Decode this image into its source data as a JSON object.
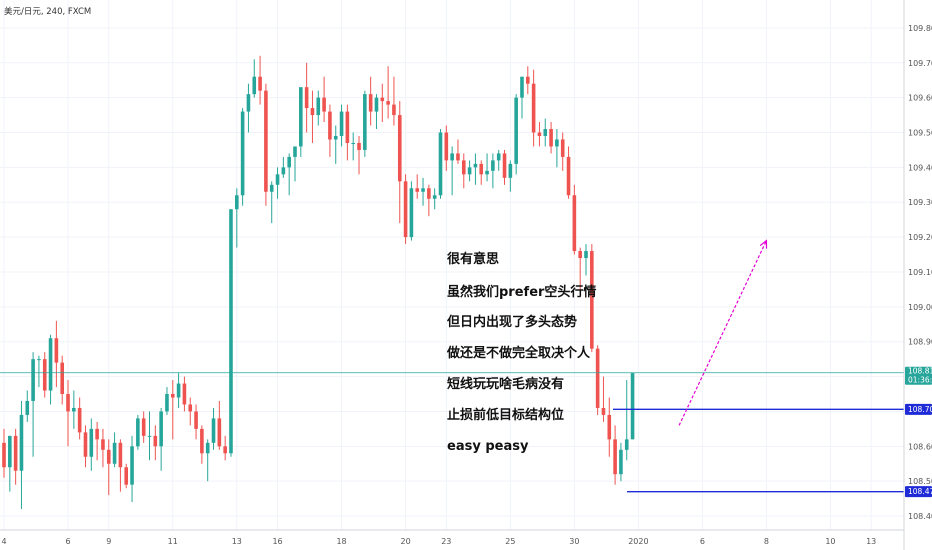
{
  "header": {
    "symbol_line": "美元/日元, 240, FXCM"
  },
  "colors": {
    "up": "#26a69a",
    "down": "#ef5350",
    "current_line": "#26a69a",
    "level_line": "#1e2bd6",
    "arrow": "#e500d6"
  },
  "annotations": [
    "很有意思",
    "虽然我们prefer空头行情",
    "但日内出现了多头态势",
    "做还是不做完全取决个人",
    "短线玩玩啥毛病没有",
    "止损前低目标结构位",
    "easy peasy"
  ],
  "price_labels": {
    "current": "108.811",
    "countdown": "01:36:14",
    "upper_level": "108.706",
    "lower_level": "108.470"
  },
  "chart_data": {
    "type": "candlestick",
    "title": "美元/日元, 240, FXCM",
    "ylim": [
      108.36,
      109.88
    ],
    "y_ticks": [
      108.4,
      108.5,
      108.6,
      108.7,
      108.8,
      108.9,
      109.0,
      109.1,
      109.2,
      109.3,
      109.4,
      109.5,
      109.6,
      109.7,
      109.8
    ],
    "y_tick_labels": [
      "108.400",
      "108.500",
      "108.600",
      "108.700",
      "108.800",
      "108.900",
      "109.000",
      "109.100",
      "109.200",
      "109.300",
      "109.400",
      "109.500",
      "109.600",
      "109.700",
      "109.800"
    ],
    "x_tick_labels": [
      "4",
      "6",
      "9",
      "11",
      "13",
      "16",
      "18",
      "20",
      "23",
      "25",
      "30",
      "2020",
      "6",
      "8",
      "10",
      "13"
    ],
    "x_tick_bar_index": [
      0,
      11,
      18,
      29,
      40,
      47,
      58,
      69,
      76,
      87,
      98,
      109,
      120,
      131,
      142,
      149
    ],
    "current_price": 108.811,
    "levels": [
      108.706,
      108.47
    ],
    "arrow": {
      "from": {
        "bar": 116,
        "price": 108.66
      },
      "to": {
        "bar": 131,
        "price": 109.19
      }
    },
    "ohlc": [
      [
        108.61,
        108.65,
        108.51,
        108.54
      ],
      [
        108.54,
        108.63,
        108.47,
        108.63
      ],
      [
        108.63,
        108.65,
        108.49,
        108.53
      ],
      [
        108.53,
        108.73,
        108.42,
        108.69
      ],
      [
        108.69,
        108.76,
        108.67,
        108.73
      ],
      [
        108.73,
        108.87,
        108.57,
        108.85
      ],
      [
        108.85,
        108.86,
        108.77,
        108.85
      ],
      [
        108.85,
        108.87,
        108.74,
        108.76
      ],
      [
        108.76,
        108.92,
        108.72,
        108.91
      ],
      [
        108.91,
        108.96,
        108.77,
        108.84
      ],
      [
        108.84,
        108.86,
        108.72,
        108.75
      ],
      [
        108.75,
        108.79,
        108.6,
        108.7
      ],
      [
        108.7,
        108.76,
        108.65,
        108.71
      ],
      [
        108.71,
        108.74,
        108.62,
        108.64
      ],
      [
        108.64,
        108.66,
        108.54,
        108.57
      ],
      [
        108.57,
        108.68,
        108.53,
        108.65
      ],
      [
        108.65,
        108.67,
        108.56,
        108.62
      ],
      [
        108.62,
        108.65,
        108.54,
        108.59
      ],
      [
        108.59,
        108.62,
        108.46,
        108.55
      ],
      [
        108.55,
        108.64,
        108.54,
        108.61
      ],
      [
        108.61,
        108.62,
        108.47,
        108.54
      ],
      [
        108.54,
        108.55,
        108.48,
        108.49
      ],
      [
        108.49,
        108.63,
        108.44,
        108.6
      ],
      [
        108.6,
        108.69,
        108.59,
        108.68
      ],
      [
        108.68,
        108.7,
        108.61,
        108.63
      ],
      [
        108.63,
        108.7,
        108.56,
        108.63
      ],
      [
        108.63,
        108.66,
        108.56,
        108.6
      ],
      [
        108.6,
        108.71,
        108.53,
        108.7
      ],
      [
        108.7,
        108.77,
        108.69,
        108.75
      ],
      [
        108.75,
        108.79,
        108.62,
        108.74
      ],
      [
        108.74,
        108.81,
        108.71,
        108.78
      ],
      [
        108.78,
        108.8,
        108.7,
        108.72
      ],
      [
        108.72,
        108.74,
        108.66,
        108.7
      ],
      [
        108.7,
        108.72,
        108.62,
        108.65
      ],
      [
        108.65,
        108.66,
        108.55,
        108.58
      ],
      [
        108.58,
        108.62,
        108.5,
        108.61
      ],
      [
        108.61,
        108.71,
        108.59,
        108.68
      ],
      [
        108.68,
        108.73,
        108.59,
        108.6
      ],
      [
        108.6,
        108.63,
        108.56,
        108.58
      ],
      [
        108.58,
        109.28,
        108.57,
        109.28
      ],
      [
        109.28,
        109.34,
        109.17,
        109.32
      ],
      [
        109.32,
        109.57,
        109.29,
        109.56
      ],
      [
        109.56,
        109.64,
        109.5,
        109.61
      ],
      [
        109.61,
        109.71,
        109.6,
        109.66
      ],
      [
        109.66,
        109.72,
        109.58,
        109.62
      ],
      [
        109.62,
        109.64,
        109.29,
        109.33
      ],
      [
        109.33,
        109.36,
        109.24,
        109.35
      ],
      [
        109.35,
        109.4,
        109.31,
        109.38
      ],
      [
        109.38,
        109.43,
        109.37,
        109.4
      ],
      [
        109.4,
        109.44,
        109.32,
        109.43
      ],
      [
        109.43,
        109.45,
        109.36,
        109.46
      ],
      [
        109.46,
        109.62,
        109.43,
        109.63
      ],
      [
        109.63,
        109.7,
        109.5,
        109.57
      ],
      [
        109.57,
        109.62,
        109.47,
        109.55
      ],
      [
        109.55,
        109.62,
        109.52,
        109.6
      ],
      [
        109.6,
        109.66,
        109.53,
        109.56
      ],
      [
        109.56,
        109.58,
        109.43,
        109.48
      ],
      [
        109.48,
        109.52,
        109.41,
        109.49
      ],
      [
        109.49,
        109.58,
        109.46,
        109.56
      ],
      [
        109.56,
        109.58,
        109.42,
        109.47
      ],
      [
        109.47,
        109.5,
        109.42,
        109.47
      ],
      [
        109.47,
        109.49,
        109.38,
        109.45
      ],
      [
        109.45,
        109.62,
        109.43,
        109.61
      ],
      [
        109.61,
        109.66,
        109.52,
        109.56
      ],
      [
        109.56,
        109.61,
        109.51,
        109.6
      ],
      [
        109.6,
        109.64,
        109.53,
        109.59
      ],
      [
        109.59,
        109.69,
        109.54,
        109.58
      ],
      [
        109.58,
        109.66,
        109.52,
        109.55
      ],
      [
        109.55,
        109.59,
        109.24,
        109.36
      ],
      [
        109.36,
        109.38,
        109.18,
        109.2
      ],
      [
        109.2,
        109.36,
        109.19,
        109.34
      ],
      [
        109.34,
        109.38,
        109.31,
        109.33
      ],
      [
        109.33,
        109.37,
        109.29,
        109.34
      ],
      [
        109.34,
        109.35,
        109.26,
        109.31
      ],
      [
        109.31,
        109.34,
        109.28,
        109.32
      ],
      [
        109.32,
        109.51,
        109.31,
        109.5
      ],
      [
        109.5,
        109.52,
        109.39,
        109.42
      ],
      [
        109.42,
        109.46,
        109.32,
        109.44
      ],
      [
        109.44,
        109.48,
        109.41,
        109.42
      ],
      [
        109.42,
        109.44,
        109.34,
        109.38
      ],
      [
        109.38,
        109.42,
        109.36,
        109.4
      ],
      [
        109.4,
        109.44,
        109.35,
        109.41
      ],
      [
        109.41,
        109.42,
        109.35,
        109.38
      ],
      [
        109.38,
        109.44,
        109.36,
        109.39
      ],
      [
        109.39,
        109.44,
        109.34,
        109.42
      ],
      [
        109.42,
        109.45,
        109.39,
        109.44
      ],
      [
        109.44,
        109.45,
        109.35,
        109.37
      ],
      [
        109.37,
        109.42,
        109.33,
        109.41
      ],
      [
        109.41,
        109.61,
        109.38,
        109.6
      ],
      [
        109.6,
        109.66,
        109.54,
        109.66
      ],
      [
        109.66,
        109.69,
        109.61,
        109.64
      ],
      [
        109.64,
        109.68,
        109.46,
        109.5
      ],
      [
        109.5,
        109.53,
        109.46,
        109.49
      ],
      [
        109.49,
        109.54,
        109.46,
        109.51
      ],
      [
        109.51,
        109.53,
        109.44,
        109.46
      ],
      [
        109.46,
        109.51,
        109.4,
        109.48
      ],
      [
        109.48,
        109.5,
        109.39,
        109.43
      ],
      [
        109.43,
        109.46,
        109.31,
        109.32
      ],
      [
        109.32,
        109.35,
        109.15,
        109.16
      ],
      [
        109.16,
        109.17,
        109.04,
        109.14
      ],
      [
        109.14,
        109.18,
        109.09,
        109.16
      ],
      [
        109.16,
        109.18,
        108.87,
        108.88
      ],
      [
        108.88,
        108.89,
        108.69,
        108.71
      ],
      [
        108.71,
        108.8,
        108.67,
        108.69
      ],
      [
        108.69,
        108.74,
        108.57,
        108.62
      ],
      [
        108.62,
        108.66,
        108.49,
        108.52
      ],
      [
        108.52,
        108.61,
        108.5,
        108.59
      ],
      [
        108.59,
        108.79,
        108.56,
        108.62
      ],
      [
        108.62,
        108.81,
        108.62,
        108.81
      ]
    ]
  }
}
